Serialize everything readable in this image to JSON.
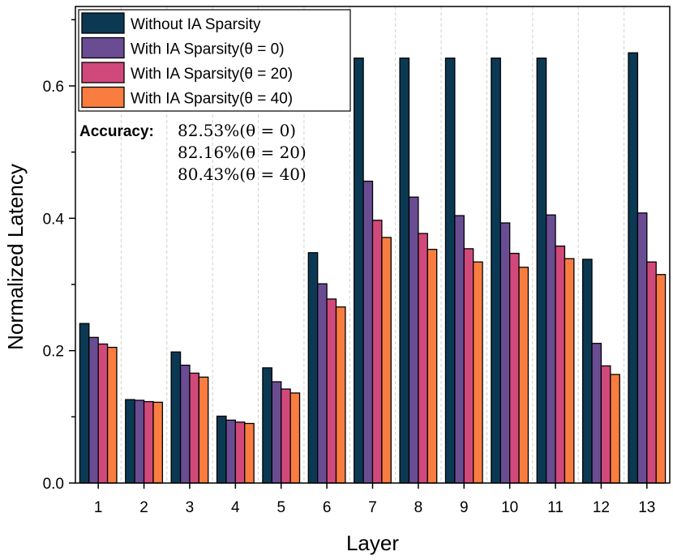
{
  "chart_data": {
    "type": "bar",
    "title": "",
    "xlabel": "Layer",
    "ylabel": "Normalized Latency",
    "ylim": [
      0,
      0.72
    ],
    "yticks": [
      0.0,
      0.2,
      0.4,
      0.6
    ],
    "ytick_labels": [
      "0.0",
      "0.2",
      "0.4",
      "0.6"
    ],
    "categories": [
      "1",
      "2",
      "3",
      "4",
      "5",
      "6",
      "7",
      "8",
      "9",
      "10",
      "11",
      "12",
      "13"
    ],
    "grid": "vertical dashed",
    "legend_position": "top-left",
    "series": [
      {
        "name": "Without IA Sparsity",
        "color": "#0b3954",
        "values": [
          0.241,
          0.126,
          0.198,
          0.101,
          0.174,
          0.348,
          0.642,
          0.642,
          0.642,
          0.642,
          0.642,
          0.338,
          0.65
        ]
      },
      {
        "name": "With IA Sparsity(θ = 0)",
        "color": "#6a4c93",
        "values": [
          0.22,
          0.125,
          0.178,
          0.095,
          0.153,
          0.301,
          0.456,
          0.432,
          0.404,
          0.393,
          0.405,
          0.211,
          0.408
        ]
      },
      {
        "name": "With IA Sparsity(θ = 20)",
        "color": "#d1497b",
        "values": [
          0.21,
          0.123,
          0.166,
          0.092,
          0.142,
          0.278,
          0.397,
          0.377,
          0.354,
          0.347,
          0.358,
          0.177,
          0.334
        ]
      },
      {
        "name": "With IA Sparsity(θ = 40)",
        "color": "#f97d40",
        "values": [
          0.205,
          0.122,
          0.16,
          0.09,
          0.136,
          0.266,
          0.371,
          0.353,
          0.334,
          0.326,
          0.339,
          0.164,
          0.315
        ]
      }
    ],
    "annotation": {
      "label": "Accuracy:",
      "lines": [
        "82.53%(θ = 0)",
        "82.16%(θ = 20)",
        "80.43%(θ = 40)"
      ]
    }
  }
}
